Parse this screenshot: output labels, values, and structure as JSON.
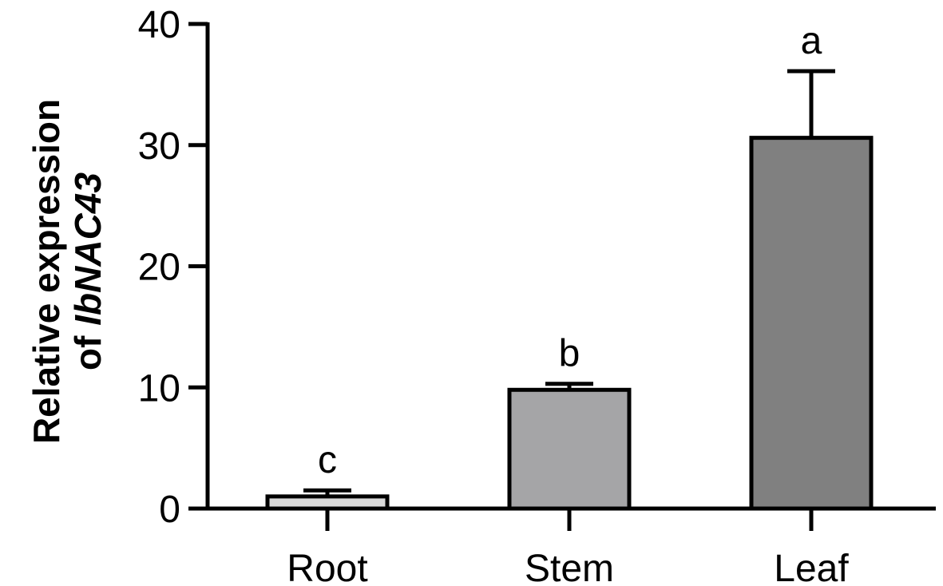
{
  "chart_data": {
    "type": "bar",
    "ylabel": {
      "line1": "Relative expression",
      "line2": "of",
      "gene": "IbNAC43"
    },
    "categories": [
      "Root",
      "Stem",
      "Leaf"
    ],
    "values": [
      1.0,
      9.8,
      30.6
    ],
    "errors": [
      0.5,
      0.5,
      5.5
    ],
    "annotations": [
      "c",
      "b",
      "a"
    ],
    "colors": [
      "#d9d9d9",
      "#a5a5a7",
      "#808080"
    ],
    "ylim": [
      0,
      40
    ],
    "yticks": [
      0,
      10,
      20,
      30,
      40
    ],
    "grid": false
  }
}
